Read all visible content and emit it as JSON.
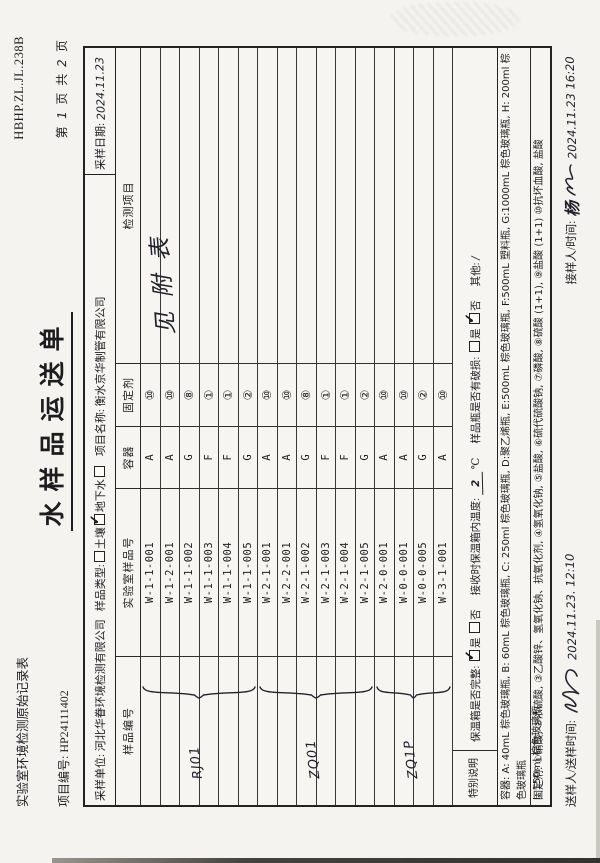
{
  "header": {
    "record_title": "实验室环境检测原始记录表",
    "form_code": "HBHP.ZL.JL.238B",
    "project_no_label": "项目编号:",
    "project_no": "HP24111402",
    "title": "水样品运送单",
    "page_label_prefix": "第",
    "page_number": "1",
    "page_label_mid": "页 共",
    "page_total": "2",
    "page_label_suffix": "页"
  },
  "info_row": {
    "sampling_org_label": "采样单位:",
    "sampling_org": "河北华眷环境检测有限公司",
    "sample_type_label": "样品类型:",
    "sample_type_options": [
      {
        "label": "土壤",
        "checked": false
      },
      {
        "label": "地下水",
        "checked": true
      },
      {
        "label": "",
        "checked": false
      }
    ],
    "project_name_label": "项目名称:",
    "project_name": "衡水京华制管有限公司",
    "sampling_date_label": "采样日期:",
    "sampling_date": "2024.11.23"
  },
  "table": {
    "headers": [
      "样品编号",
      "实验室样品号",
      "容器",
      "固定剂",
      "检测项目"
    ],
    "rows": [
      {
        "lab_id": "W-1-1-001",
        "container": "A",
        "fixative": "⑩"
      },
      {
        "lab_id": "W-1-2-001",
        "container": "A",
        "fixative": "⑩"
      },
      {
        "lab_id": "W-1-1-002",
        "container": "G",
        "fixative": "⑧"
      },
      {
        "lab_id": "W-1-1-003",
        "container": "F",
        "fixative": "①"
      },
      {
        "lab_id": "W-1-1-004",
        "container": "F",
        "fixative": "①"
      },
      {
        "lab_id": "W-1-1-005",
        "container": "G",
        "fixative": "②"
      },
      {
        "lab_id": "W-2-1-001",
        "container": "A",
        "fixative": "⑩"
      },
      {
        "lab_id": "W-2-2-001",
        "container": "A",
        "fixative": "⑩"
      },
      {
        "lab_id": "W-2-1-002",
        "container": "G",
        "fixative": "⑧"
      },
      {
        "lab_id": "W-2-1-003",
        "container": "F",
        "fixative": "①"
      },
      {
        "lab_id": "W-2-1-004",
        "container": "F",
        "fixative": "①"
      },
      {
        "lab_id": "W-2-1-005",
        "container": "G",
        "fixative": "②"
      },
      {
        "lab_id": "W-2-0-001",
        "container": "A",
        "fixative": "⑩"
      },
      {
        "lab_id": "W-0-0-001",
        "container": "A",
        "fixative": "⑩"
      },
      {
        "lab_id": "W-0-0-005",
        "container": "G",
        "fixative": "②"
      },
      {
        "lab_id": "W-3-1-001",
        "container": "A",
        "fixative": "⑩"
      }
    ],
    "sample_groups": [
      {
        "label": "RJ01",
        "from_row": 1,
        "to_row": 6
      },
      {
        "label": "ZQ01",
        "from_row": 7,
        "to_row": 12
      },
      {
        "label": "ZQ1P",
        "from_row": 13,
        "to_row": 16
      }
    ],
    "test_items_note": "见附表"
  },
  "special_notes": {
    "label": "特别说明",
    "cooler_label": "保温箱是否完整:",
    "cooler_yes": "是",
    "cooler_no": "否",
    "cooler_checked": "yes",
    "temp_label": "接收时保温箱内温度:",
    "temp_value": "2",
    "temp_unit": "℃",
    "damage_label": "样品瓶是否有破损:",
    "damage_yes": "是",
    "damage_no": "否",
    "damage_checked": "no",
    "other_label": "其他:",
    "other_value": "/"
  },
  "legend": {
    "container_line1": "容器: A: 40mL 棕色玻璃瓶, B: 60mL 棕色玻璃瓶, C: 250ml 棕色玻璃瓶, D:聚乙烯瓶, E:500mL 棕色玻璃瓶, F:500mL 塑料瓶, G:1000mL 棕色玻璃瓶, H: 200ml 棕色玻璃瓶",
    "container_line2": "I: 150ml 棕色玻璃瓶",
    "fixative_line": "固定剂: ①硝酸, ②浓硫酸, ③乙酸锌、氢氧化钠、抗氧化剂, ④氢氧化钠, ⑤盐酸, ⑥硫代硫酸钠, ⑦磷酸, ⑧硫酸 (1+1), ⑨盐酸 (1+1) ⑩抗坏血酸, 盐酸"
  },
  "footer": {
    "sender_label": "送样人/送样时间:",
    "sender_datetime": "2024.11.23. 12:10",
    "receiver_label": "接样人/时间:",
    "receiver_name": "杨",
    "receiver_datetime": "2024.11.23 16:20"
  }
}
